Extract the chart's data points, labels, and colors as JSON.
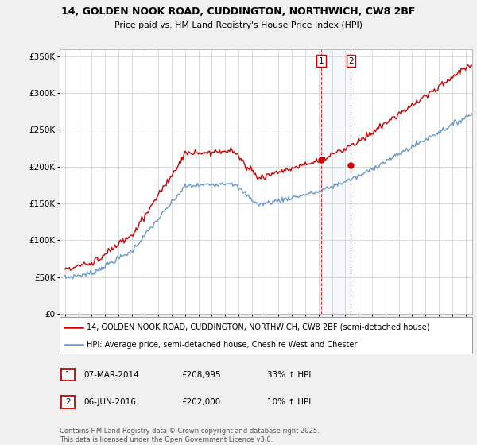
{
  "title_line1": "14, GOLDEN NOOK ROAD, CUDDINGTON, NORTHWICH, CW8 2BF",
  "title_line2": "Price paid vs. HM Land Registry's House Price Index (HPI)",
  "legend_line1": "14, GOLDEN NOOK ROAD, CUDDINGTON, NORTHWICH, CW8 2BF (semi-detached house)",
  "legend_line2": "HPI: Average price, semi-detached house, Cheshire West and Chester",
  "transaction1_date": "07-MAR-2014",
  "transaction1_price": "£208,995",
  "transaction1_hpi": "33% ↑ HPI",
  "transaction2_date": "06-JUN-2016",
  "transaction2_price": "£202,000",
  "transaction2_hpi": "10% ↑ HPI",
  "footer": "Contains HM Land Registry data © Crown copyright and database right 2025.\nThis data is licensed under the Open Government Licence v3.0.",
  "red_color": "#cc0000",
  "blue_color": "#6699cc",
  "background_color": "#f0f0f0",
  "plot_bg_color": "#ffffff",
  "grid_color": "#cccccc",
  "ylim": [
    0,
    360000
  ],
  "yticks": [
    0,
    50000,
    100000,
    150000,
    200000,
    250000,
    300000,
    350000
  ],
  "t1_year": 2014.17,
  "t2_year": 2016.42,
  "t1_price": 208995,
  "t2_price": 202000
}
